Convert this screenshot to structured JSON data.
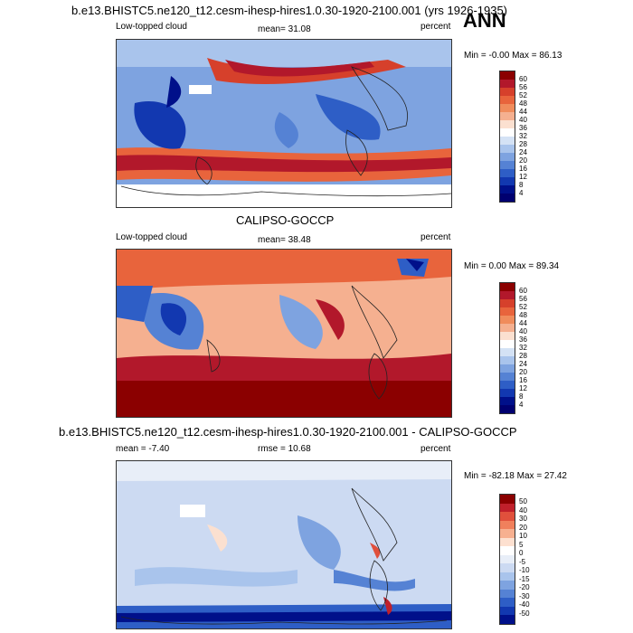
{
  "header": {
    "case_title": "b.e13.BHISTC5.ne120_t12.cesm-ihesp-hires1.0.30-1920-2100.001 (yrs 1926-1935)",
    "season": "ANN"
  },
  "panels": [
    {
      "id": "model",
      "subtitle": "",
      "left_label": "Low-topped cloud",
      "center_label": "mean=  31.08",
      "right_label": "percent",
      "min_max": "Min =  -0.00 Max =  86.13",
      "colorbar": [
        "60",
        "56",
        "52",
        "48",
        "44",
        "40",
        "36",
        "32",
        "28",
        "24",
        "20",
        "16",
        "12",
        "8",
        "4"
      ]
    },
    {
      "id": "obs",
      "subtitle": "CALIPSO-GOCCP",
      "left_label": "Low-topped cloud",
      "center_label": "mean=  38.48",
      "right_label": "percent",
      "min_max": "Min =   0.00 Max =  89.34",
      "colorbar": [
        "60",
        "56",
        "52",
        "48",
        "44",
        "40",
        "36",
        "32",
        "28",
        "24",
        "20",
        "16",
        "12",
        "8",
        "4"
      ]
    },
    {
      "id": "diff",
      "subtitle": "b.e13.BHISTC5.ne120_t12.cesm-ihesp-hires1.0.30-1920-2100.001 - CALIPSO-GOCCP",
      "left_label": "mean =  -7.40",
      "center_label": "rmse =  10.68",
      "right_label": "percent",
      "min_max": "Min = -82.18 Max =  27.42",
      "colorbar": [
        "50",
        "40",
        "30",
        "20",
        "10",
        "5",
        "0",
        "-5",
        "-10",
        "-15",
        "-20",
        "-30",
        "-40",
        "-50"
      ]
    }
  ],
  "colors": {
    "abs_scale": [
      "#8b0000",
      "#b2182b",
      "#d6402b",
      "#e8643c",
      "#f08c5c",
      "#f5b090",
      "#fbe0d0",
      "#ffffff",
      "#d4e2f5",
      "#a9c4ec",
      "#7ea3e0",
      "#5582d4",
      "#2e5ec6",
      "#1238b0",
      "#00108a",
      "#000070"
    ],
    "diff_scale": [
      "#8b0000",
      "#c0202b",
      "#e0503c",
      "#f0805c",
      "#f7b090",
      "#fde0d0",
      "#ffffff",
      "#e8eef8",
      "#ccdaf2",
      "#a9c4ec",
      "#7ea3e0",
      "#5582d4",
      "#2e5ec6",
      "#1238b0",
      "#00108a"
    ]
  }
}
